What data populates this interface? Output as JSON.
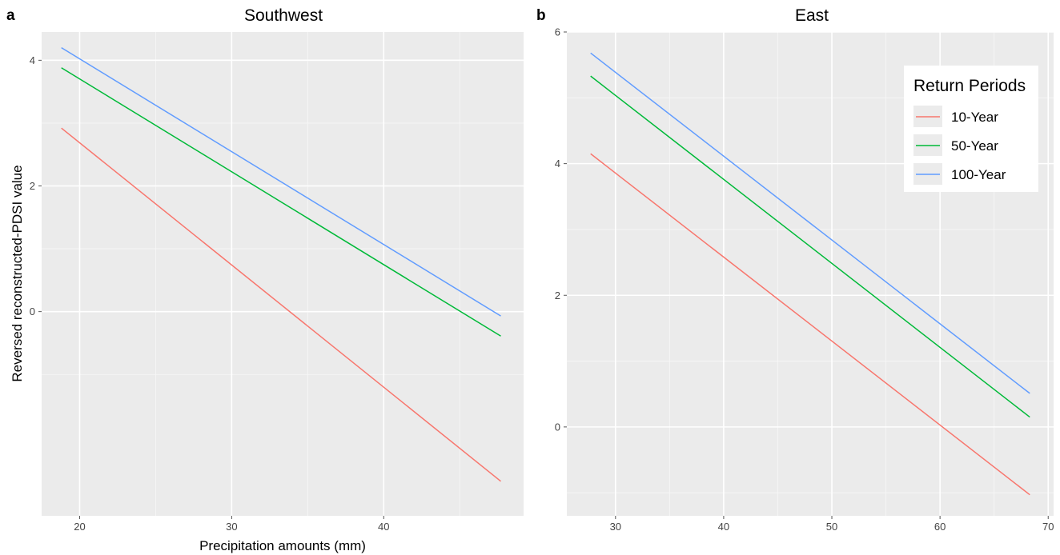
{
  "chart_data": [
    {
      "type": "line",
      "panel_tag": "a",
      "title": "Southwest",
      "xlabel": "Precipitation amounts (mm)",
      "ylabel": "Reversed reconstructed-PDSI value",
      "xlim": [
        17.5,
        49.2
      ],
      "ylim": [
        -3.25,
        4.45
      ],
      "x_ticks": [
        20,
        30,
        40
      ],
      "y_ticks": [
        0,
        2,
        4
      ],
      "grid": true,
      "series": [
        {
          "name": "10-Year",
          "color": "#F8766D",
          "x": [
            18.8,
            47.7
          ],
          "y": [
            2.92,
            -2.7
          ]
        },
        {
          "name": "50-Year",
          "color": "#00BA38",
          "x": [
            18.8,
            47.7
          ],
          "y": [
            3.88,
            -0.39
          ]
        },
        {
          "name": "100-Year",
          "color": "#619CFF",
          "x": [
            18.8,
            47.7
          ],
          "y": [
            4.2,
            -0.07
          ]
        }
      ]
    },
    {
      "type": "line",
      "panel_tag": "b",
      "title": "East",
      "xlabel": "",
      "ylabel": "",
      "xlim": [
        25.5,
        70.5
      ],
      "ylim": [
        -1.35,
        6.0
      ],
      "x_ticks": [
        30,
        40,
        50,
        60,
        70
      ],
      "y_ticks": [
        0,
        2,
        4,
        6
      ],
      "grid": true,
      "legend_position": "top-right",
      "series": [
        {
          "name": "10-Year",
          "color": "#F8766D",
          "x": [
            27.7,
            68.3
          ],
          "y": [
            4.15,
            -1.03
          ]
        },
        {
          "name": "50-Year",
          "color": "#00BA38",
          "x": [
            27.7,
            68.3
          ],
          "y": [
            5.33,
            0.15
          ]
        },
        {
          "name": "100-Year",
          "color": "#619CFF",
          "x": [
            27.7,
            68.3
          ],
          "y": [
            5.68,
            0.51
          ]
        }
      ]
    }
  ],
  "legend": {
    "title": "Return Periods",
    "items": [
      {
        "label": "10-Year",
        "color": "#F8766D"
      },
      {
        "label": "50-Year",
        "color": "#00BA38"
      },
      {
        "label": "100-Year",
        "color": "#619CFF"
      }
    ]
  }
}
